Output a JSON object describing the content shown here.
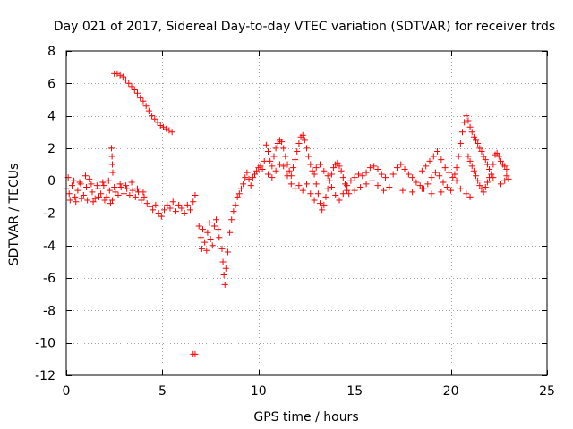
{
  "chart_data": {
    "type": "scatter",
    "title": "Day 021 of 2017, Sidereal Day-to-day VTEC variation (SDTVAR) for receiver trds",
    "xlabel": "GPS time / hours",
    "ylabel": "SDTVAR / TECUs",
    "xlim": [
      0,
      25
    ],
    "ylim": [
      -12,
      8
    ],
    "xticks": [
      0,
      5,
      10,
      15,
      20,
      25
    ],
    "xtick_labels": [
      "0",
      "5",
      "10",
      "15",
      "20",
      "25"
    ],
    "yticks": [
      -12,
      -10,
      -8,
      -6,
      -4,
      -2,
      0,
      2,
      4,
      6,
      8
    ],
    "ytick_labels": [
      "-12",
      "-10",
      "-8",
      "-6",
      "-4",
      "-2",
      "0",
      "2",
      "4",
      "6",
      "8"
    ],
    "grid": true,
    "marker": "+",
    "color": "#ff0000",
    "series": [
      {
        "name": "SDTVAR",
        "points": [
          [
            0.0,
            -0.5
          ],
          [
            0.15,
            -0.8
          ],
          [
            0.3,
            -0.3
          ],
          [
            0.45,
            -1.0
          ],
          [
            0.6,
            -0.6
          ],
          [
            0.75,
            -0.2
          ],
          [
            0.9,
            -0.9
          ],
          [
            1.05,
            -0.4
          ],
          [
            1.2,
            0.1
          ],
          [
            1.35,
            -0.7
          ],
          [
            1.5,
            -1.1
          ],
          [
            1.65,
            -0.5
          ],
          [
            1.8,
            -0.8
          ],
          [
            1.95,
            -0.3
          ],
          [
            2.1,
            -1.0
          ],
          [
            2.25,
            -0.6
          ],
          [
            2.4,
            -1.2
          ],
          [
            2.55,
            -0.7
          ],
          [
            2.7,
            -0.9
          ],
          [
            2.85,
            -0.4
          ],
          [
            3.0,
            -0.8
          ],
          [
            3.15,
            -0.5
          ],
          [
            3.3,
            -0.9
          ],
          [
            3.45,
            -0.6
          ],
          [
            3.6,
            -1.0
          ],
          [
            3.75,
            -0.7
          ],
          [
            3.9,
            -1.2
          ],
          [
            4.05,
            -1.0
          ],
          [
            4.2,
            -1.4
          ],
          [
            4.35,
            -1.6
          ],
          [
            4.5,
            -1.8
          ],
          [
            4.65,
            -1.5
          ],
          [
            4.8,
            -2.0
          ],
          [
            4.95,
            -2.2
          ],
          [
            5.1,
            -1.8
          ],
          [
            5.25,
            -1.5
          ],
          [
            5.4,
            -1.7
          ],
          [
            5.55,
            -1.3
          ],
          [
            5.7,
            -1.9
          ],
          [
            5.85,
            -1.5
          ],
          [
            6.0,
            -1.7
          ],
          [
            6.15,
            -2.0
          ],
          [
            6.3,
            -1.5
          ],
          [
            6.45,
            -1.8
          ],
          [
            6.6,
            -1.3
          ],
          [
            6.7,
            -0.9
          ],
          [
            0.1,
            0.2
          ],
          [
            0.4,
            0.0
          ],
          [
            0.7,
            -0.1
          ],
          [
            1.0,
            0.3
          ],
          [
            1.3,
            -0.2
          ],
          [
            1.6,
            -0.3
          ],
          [
            1.9,
            -0.1
          ],
          [
            2.2,
            0.0
          ],
          [
            2.5,
            -0.4
          ],
          [
            2.8,
            -0.2
          ],
          [
            3.1,
            -0.3
          ],
          [
            3.4,
            -0.1
          ],
          [
            3.7,
            -0.5
          ],
          [
            4.0,
            -0.7
          ],
          [
            0.2,
            -1.2
          ],
          [
            0.5,
            -1.3
          ],
          [
            0.8,
            -1.1
          ],
          [
            1.1,
            -1.2
          ],
          [
            1.4,
            -1.3
          ],
          [
            1.7,
            -1.0
          ],
          [
            2.0,
            -1.2
          ],
          [
            2.3,
            -1.4
          ],
          [
            2.35,
            2.0
          ],
          [
            2.38,
            1.5
          ],
          [
            2.4,
            1.0
          ],
          [
            2.42,
            0.5
          ],
          [
            2.5,
            6.6
          ],
          [
            2.65,
            6.6
          ],
          [
            2.8,
            6.5
          ],
          [
            2.95,
            6.4
          ],
          [
            3.1,
            6.2
          ],
          [
            3.25,
            6.0
          ],
          [
            3.4,
            5.8
          ],
          [
            3.55,
            5.6
          ],
          [
            3.7,
            5.4
          ],
          [
            3.85,
            5.1
          ],
          [
            4.0,
            4.9
          ],
          [
            4.15,
            4.6
          ],
          [
            4.3,
            4.3
          ],
          [
            4.45,
            4.0
          ],
          [
            4.6,
            3.8
          ],
          [
            4.75,
            3.6
          ],
          [
            4.9,
            3.4
          ],
          [
            5.05,
            3.3
          ],
          [
            5.2,
            3.2
          ],
          [
            5.35,
            3.1
          ],
          [
            5.5,
            3.0
          ],
          [
            6.6,
            -10.7
          ],
          [
            6.7,
            -10.7
          ],
          [
            6.9,
            -2.8
          ],
          [
            7.0,
            -3.5
          ],
          [
            7.05,
            -4.2
          ],
          [
            7.1,
            -3.0
          ],
          [
            7.2,
            -3.8
          ],
          [
            7.3,
            -4.3
          ],
          [
            7.35,
            -3.2
          ],
          [
            7.45,
            -2.6
          ],
          [
            7.5,
            -3.6
          ],
          [
            7.6,
            -4.0
          ],
          [
            7.7,
            -2.8
          ],
          [
            7.8,
            -2.4
          ],
          [
            7.9,
            -3.0
          ],
          [
            7.95,
            -3.5
          ],
          [
            8.1,
            -4.2
          ],
          [
            8.15,
            -5.0
          ],
          [
            8.2,
            -5.8
          ],
          [
            8.25,
            -6.4
          ],
          [
            8.3,
            -5.4
          ],
          [
            8.4,
            -4.4
          ],
          [
            8.5,
            -3.2
          ],
          [
            8.6,
            -2.4
          ],
          [
            8.7,
            -1.9
          ],
          [
            8.8,
            -1.5
          ],
          [
            8.9,
            -1.0
          ],
          [
            9.0,
            -0.8
          ],
          [
            9.1,
            -0.5
          ],
          [
            9.2,
            -0.2
          ],
          [
            9.3,
            0.2
          ],
          [
            9.4,
            0.5
          ],
          [
            9.5,
            0.1
          ],
          [
            9.6,
            -0.3
          ],
          [
            9.7,
            0.2
          ],
          [
            9.8,
            0.4
          ],
          [
            9.9,
            0.6
          ],
          [
            10.0,
            0.8
          ],
          [
            10.1,
            0.9
          ],
          [
            10.2,
            0.7
          ],
          [
            10.3,
            1.2
          ],
          [
            10.4,
            2.2
          ],
          [
            10.5,
            1.8
          ],
          [
            10.6,
            1.2
          ],
          [
            10.7,
            0.9
          ],
          [
            10.8,
            1.5
          ],
          [
            10.9,
            2.0
          ],
          [
            11.0,
            2.3
          ],
          [
            11.1,
            2.5
          ],
          [
            11.2,
            2.4
          ],
          [
            11.3,
            2.0
          ],
          [
            11.4,
            1.5
          ],
          [
            11.5,
            1.0
          ],
          [
            11.6,
            0.6
          ],
          [
            11.7,
            0.3
          ],
          [
            11.8,
            0.8
          ],
          [
            11.9,
            1.3
          ],
          [
            12.0,
            1.8
          ],
          [
            12.1,
            2.3
          ],
          [
            12.2,
            2.7
          ],
          [
            12.3,
            2.8
          ],
          [
            12.4,
            2.5
          ],
          [
            12.5,
            2.0
          ],
          [
            12.6,
            1.5
          ],
          [
            12.7,
            1.0
          ],
          [
            12.8,
            0.6
          ],
          [
            10.5,
            0.4
          ],
          [
            10.7,
            0.2
          ],
          [
            10.9,
            0.6
          ],
          [
            11.1,
            1.0
          ],
          [
            11.3,
            0.9
          ],
          [
            11.5,
            0.3
          ],
          [
            11.7,
            -0.2
          ],
          [
            11.9,
            -0.5
          ],
          [
            12.1,
            -0.3
          ],
          [
            12.3,
            -0.6
          ],
          [
            12.5,
            -0.2
          ],
          [
            12.7,
            -0.8
          ],
          [
            12.9,
            -1.2
          ],
          [
            12.9,
            0.4
          ],
          [
            13.0,
            -0.2
          ],
          [
            13.1,
            -0.8
          ],
          [
            13.2,
            -1.4
          ],
          [
            13.3,
            -1.8
          ],
          [
            13.4,
            -1.5
          ],
          [
            13.5,
            -1.0
          ],
          [
            13.6,
            -0.5
          ],
          [
            13.7,
            0.0
          ],
          [
            13.8,
            0.4
          ],
          [
            13.9,
            0.8
          ],
          [
            14.0,
            1.0
          ],
          [
            14.1,
            1.1
          ],
          [
            14.2,
            0.9
          ],
          [
            14.3,
            0.6
          ],
          [
            14.4,
            0.2
          ],
          [
            14.5,
            -0.2
          ],
          [
            14.6,
            -0.6
          ],
          [
            14.7,
            -0.8
          ],
          [
            13.0,
            0.8
          ],
          [
            13.2,
            1.0
          ],
          [
            13.4,
            0.6
          ],
          [
            13.6,
            0.3
          ],
          [
            13.8,
            -0.4
          ],
          [
            14.0,
            -0.9
          ],
          [
            14.2,
            -1.2
          ],
          [
            14.4,
            -0.8
          ],
          [
            14.6,
            -0.3
          ],
          [
            14.8,
            0.0
          ],
          [
            15.0,
            0.2
          ],
          [
            15.2,
            0.4
          ],
          [
            15.4,
            0.3
          ],
          [
            15.6,
            0.5
          ],
          [
            15.8,
            0.8
          ],
          [
            16.0,
            0.9
          ],
          [
            16.2,
            0.7
          ],
          [
            16.4,
            0.4
          ],
          [
            16.6,
            0.2
          ],
          [
            15.0,
            -0.6
          ],
          [
            15.3,
            -0.4
          ],
          [
            15.6,
            -0.2
          ],
          [
            15.9,
            0.0
          ],
          [
            16.2,
            -0.3
          ],
          [
            16.5,
            -0.6
          ],
          [
            16.8,
            -0.4
          ],
          [
            17.0,
            0.4
          ],
          [
            17.2,
            0.8
          ],
          [
            17.4,
            1.0
          ],
          [
            17.6,
            0.7
          ],
          [
            17.8,
            0.4
          ],
          [
            18.0,
            0.2
          ],
          [
            18.2,
            -0.1
          ],
          [
            18.4,
            -0.3
          ],
          [
            18.6,
            -0.5
          ],
          [
            18.8,
            -0.2
          ],
          [
            19.0,
            0.2
          ],
          [
            19.2,
            0.5
          ],
          [
            19.4,
            0.3
          ],
          [
            19.6,
            -0.1
          ],
          [
            19.8,
            -0.4
          ],
          [
            18.5,
            0.6
          ],
          [
            18.7,
            0.9
          ],
          [
            18.9,
            1.2
          ],
          [
            19.1,
            1.5
          ],
          [
            19.3,
            1.8
          ],
          [
            19.5,
            1.3
          ],
          [
            19.7,
            0.8
          ],
          [
            19.9,
            0.5
          ],
          [
            20.1,
            0.2
          ],
          [
            20.3,
            0.0
          ],
          [
            17.5,
            -0.6
          ],
          [
            18.0,
            -0.7
          ],
          [
            18.5,
            -0.5
          ],
          [
            19.0,
            -0.8
          ],
          [
            19.5,
            -0.7
          ],
          [
            20.0,
            -0.6
          ],
          [
            20.2,
            0.4
          ],
          [
            20.3,
            0.8
          ],
          [
            20.4,
            1.5
          ],
          [
            20.5,
            2.3
          ],
          [
            20.6,
            3.0
          ],
          [
            20.7,
            3.6
          ],
          [
            20.8,
            4.0
          ],
          [
            20.9,
            3.7
          ],
          [
            21.0,
            3.3
          ],
          [
            21.1,
            3.0
          ],
          [
            21.2,
            2.7
          ],
          [
            21.3,
            2.5
          ],
          [
            21.4,
            2.3
          ],
          [
            21.5,
            2.0
          ],
          [
            21.6,
            1.8
          ],
          [
            21.7,
            1.5
          ],
          [
            21.8,
            1.3
          ],
          [
            21.9,
            1.0
          ],
          [
            22.0,
            0.7
          ],
          [
            22.1,
            0.4
          ],
          [
            22.2,
            0.2
          ],
          [
            20.9,
            1.5
          ],
          [
            21.0,
            1.2
          ],
          [
            21.1,
            0.9
          ],
          [
            21.2,
            0.6
          ],
          [
            21.3,
            0.3
          ],
          [
            21.4,
            0.0
          ],
          [
            21.5,
            -0.3
          ],
          [
            21.6,
            -0.5
          ],
          [
            21.7,
            -0.7
          ],
          [
            21.8,
            -0.4
          ],
          [
            21.9,
            -0.1
          ],
          [
            22.0,
            0.2
          ],
          [
            22.2,
            1.0
          ],
          [
            22.3,
            1.6
          ],
          [
            22.4,
            1.7
          ],
          [
            22.5,
            1.5
          ],
          [
            22.6,
            1.2
          ],
          [
            22.7,
            1.0
          ],
          [
            22.8,
            0.9
          ],
          [
            22.9,
            0.7
          ],
          [
            22.6,
            -0.2
          ],
          [
            22.8,
            0.0
          ],
          [
            22.9,
            0.3
          ],
          [
            23.0,
            0.1
          ],
          [
            20.5,
            -0.5
          ],
          [
            20.8,
            -0.8
          ],
          [
            21.0,
            -1.0
          ]
        ]
      }
    ]
  }
}
